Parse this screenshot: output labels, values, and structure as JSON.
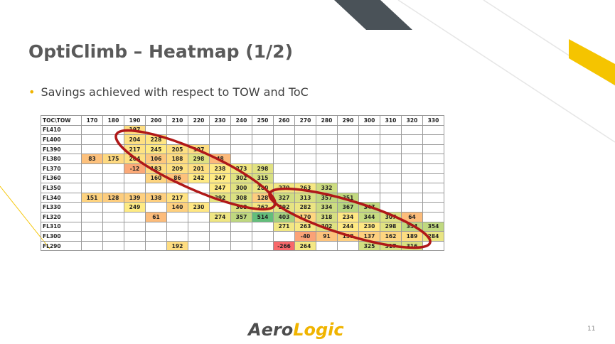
{
  "title": "OptiClimb – Heatmap (1/2)",
  "bullet": "Savings achieved with respect to TOW and ToC",
  "table": {
    "columns": [
      "TOC\\TOW",
      "170",
      "180",
      "190",
      "200",
      "210",
      "220",
      "230",
      "240",
      "250",
      "260",
      "270",
      "280",
      "290",
      "300",
      "310",
      "320",
      "330"
    ],
    "rows": [
      {
        "label": "FL410",
        "values": [
          null,
          null,
          197,
          null,
          null,
          null,
          null,
          null,
          null,
          null,
          null,
          null,
          null,
          null,
          null,
          null,
          null
        ]
      },
      {
        "label": "FL400",
        "values": [
          null,
          null,
          204,
          228,
          null,
          null,
          null,
          null,
          null,
          null,
          null,
          null,
          null,
          null,
          null,
          null,
          null
        ]
      },
      {
        "label": "FL390",
        "values": [
          null,
          null,
          217,
          245,
          205,
          197,
          null,
          null,
          null,
          null,
          null,
          null,
          null,
          null,
          null,
          null,
          null
        ]
      },
      {
        "label": "FL380",
        "values": [
          83,
          175,
          204,
          106,
          188,
          298,
          48,
          null,
          null,
          null,
          null,
          null,
          null,
          null,
          null,
          null,
          null
        ]
      },
      {
        "label": "FL370",
        "values": [
          null,
          null,
          -12,
          183,
          209,
          201,
          238,
          273,
          298,
          null,
          null,
          null,
          null,
          null,
          null,
          null,
          null
        ]
      },
      {
        "label": "FL360",
        "values": [
          null,
          null,
          null,
          160,
          86,
          242,
          247,
          302,
          315,
          null,
          null,
          null,
          null,
          null,
          null,
          null,
          null
        ]
      },
      {
        "label": "FL350",
        "values": [
          null,
          null,
          null,
          null,
          null,
          null,
          247,
          300,
          280,
          270,
          263,
          332,
          null,
          null,
          null,
          null,
          null
        ]
      },
      {
        "label": "FL340",
        "values": [
          151,
          128,
          139,
          138,
          217,
          null,
          292,
          308,
          128,
          327,
          313,
          357,
          351,
          null,
          null,
          null,
          null
        ]
      },
      {
        "label": "FL330",
        "values": [
          null,
          null,
          249,
          null,
          140,
          230,
          null,
          308,
          262,
          292,
          282,
          334,
          367,
          347,
          null,
          null,
          null
        ]
      },
      {
        "label": "FL320",
        "values": [
          null,
          null,
          null,
          61,
          null,
          null,
          274,
          357,
          514,
          403,
          170,
          318,
          234,
          344,
          307,
          64,
          null
        ]
      },
      {
        "label": "FL310",
        "values": [
          null,
          null,
          null,
          null,
          null,
          null,
          null,
          null,
          null,
          271,
          263,
          302,
          244,
          230,
          298,
          354,
          354
        ]
      },
      {
        "label": "FL300",
        "values": [
          null,
          null,
          null,
          null,
          null,
          null,
          null,
          null,
          null,
          null,
          -40,
          91,
          138,
          137,
          162,
          189,
          284
        ]
      },
      {
        "label": "FL290",
        "values": [
          null,
          null,
          null,
          null,
          192,
          null,
          null,
          null,
          null,
          -266,
          264,
          null,
          null,
          325,
          317,
          316,
          null
        ]
      }
    ]
  },
  "logo": {
    "part1": "Aero",
    "part2": "Logic"
  },
  "page_number": "11"
}
